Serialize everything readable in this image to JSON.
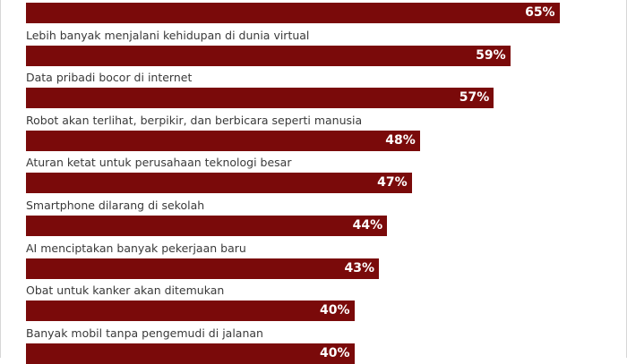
{
  "colors": {
    "bar": "#7a0a0a",
    "label_text": "#3a3a3a",
    "value_text": "#ffffff",
    "background": "#ffffff"
  },
  "chart_data": {
    "type": "bar",
    "orientation": "horizontal",
    "categories": [
      "",
      "Lebih banyak menjalani kehidupan di dunia virtual",
      "Data pribadi bocor di internet",
      "Robot akan terlihat, berpikir, dan berbicara seperti manusia",
      "Aturan ketat untuk perusahaan teknologi besar",
      "Smartphone dilarang di sekolah",
      "AI menciptakan banyak pekerjaan baru",
      "Obat untuk kanker akan ditemukan",
      "Banyak mobil tanpa pengemudi di jalanan"
    ],
    "values": [
      65,
      59,
      57,
      48,
      47,
      44,
      43,
      40,
      40
    ],
    "value_labels": [
      "65%",
      "59%",
      "57%",
      "48%",
      "47%",
      "44%",
      "43%",
      "40%",
      "40%"
    ],
    "unit": "%",
    "xlim": [
      0,
      100
    ],
    "grid": false,
    "title": "",
    "xlabel": "",
    "ylabel": ""
  }
}
